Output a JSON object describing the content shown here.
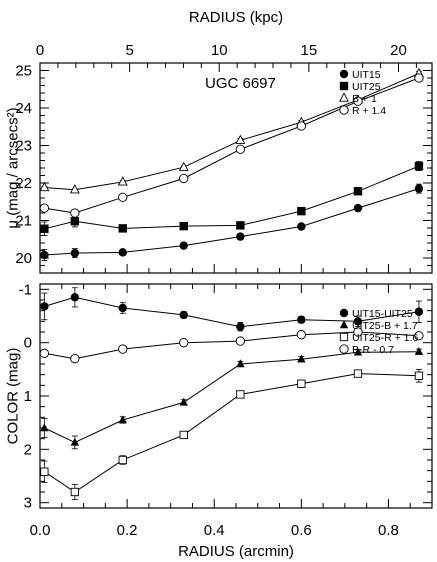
{
  "chart_data": [
    {
      "type": "line",
      "annotation": "UGC 6697",
      "ylabel": "μ (mag / arcsecs²)",
      "xlabel_bottom": "",
      "xlabel_top": "RADIUS (kpc)",
      "xlim": [
        0,
        0.9
      ],
      "ylim": [
        25.2,
        19.6
      ],
      "y_inverted": true,
      "top_axis": {
        "label": "RADIUS (kpc)",
        "ticks": [
          0,
          5,
          10,
          15,
          20
        ],
        "kpc_per_arcmin": 24.3
      },
      "y_ticks": [
        20,
        21,
        22,
        23,
        24,
        25
      ],
      "x_ticks": [
        0.0,
        0.2,
        0.4,
        0.6,
        0.8
      ],
      "x": [
        0.01,
        0.08,
        0.19,
        0.33,
        0.46,
        0.6,
        0.73,
        0.87
      ],
      "series": [
        {
          "name": "UIT15",
          "marker": "filled-circle",
          "values": [
            20.08,
            20.13,
            20.15,
            20.33,
            20.57,
            20.84,
            21.33,
            21.85
          ],
          "errors": [
            0.15,
            0.12,
            0.06,
            0.06,
            0.06,
            0.06,
            0.06,
            0.12
          ]
        },
        {
          "name": "UIT25",
          "marker": "filled-square",
          "values": [
            20.78,
            20.98,
            20.79,
            20.85,
            20.87,
            21.25,
            21.78,
            22.45
          ],
          "errors": [
            0.18,
            0.15,
            0.06,
            0.06,
            0.06,
            0.06,
            0.06,
            0.12
          ]
        },
        {
          "name": "B + 1",
          "marker": "open-triangle",
          "values": [
            21.88,
            21.82,
            22.03,
            22.42,
            23.14,
            23.62,
            24.22,
            24.92
          ],
          "errors": [
            0.02,
            0.02,
            0.03,
            0.03,
            0.05,
            0.05,
            0.05,
            0.06
          ]
        },
        {
          "name": "R + 1.4",
          "marker": "open-circle",
          "values": [
            21.33,
            21.2,
            21.62,
            22.12,
            22.9,
            23.52,
            24.18,
            24.8
          ],
          "errors": [
            0.02,
            0.02,
            0.03,
            0.03,
            0.05,
            0.05,
            0.05,
            0.06
          ]
        }
      ]
    },
    {
      "type": "line",
      "xlabel": "RADIUS (arcmin)",
      "ylabel": "COLOR (mag)",
      "xlim": [
        0,
        0.9
      ],
      "ylim": [
        -1.1,
        3.1
      ],
      "y_ticks": [
        -1,
        0,
        1,
        2,
        3
      ],
      "x_ticks": [
        0.0,
        0.2,
        0.4,
        0.6,
        0.8
      ],
      "x": [
        0.01,
        0.08,
        0.19,
        0.33,
        0.46,
        0.6,
        0.73,
        0.87
      ],
      "series": [
        {
          "name": "UIT15-UIT25",
          "marker": "filled-circle",
          "values": [
            -0.68,
            -0.85,
            -0.65,
            -0.52,
            -0.3,
            -0.43,
            -0.4,
            -0.58
          ],
          "errors": [
            0.25,
            0.18,
            0.1,
            0.06,
            0.08,
            0.06,
            0.1,
            0.2
          ]
        },
        {
          "name": "UIT25-B + 1.7",
          "marker": "filled-triangle",
          "values": [
            1.6,
            1.87,
            1.45,
            1.12,
            0.4,
            0.31,
            0.18,
            0.17
          ],
          "errors": [
            0.18,
            0.12,
            0.06,
            0.05,
            0.05,
            0.05,
            0.05,
            0.05
          ]
        },
        {
          "name": "UIT25-R + 1.6",
          "marker": "open-square",
          "values": [
            2.42,
            2.8,
            2.2,
            1.73,
            0.97,
            0.77,
            0.58,
            0.62
          ],
          "errors": [
            0.2,
            0.14,
            0.08,
            0.06,
            0.05,
            0.05,
            0.06,
            0.12
          ]
        },
        {
          "name": "B-R - 0.7",
          "marker": "open-circle",
          "values": [
            0.2,
            0.3,
            0.12,
            0.0,
            -0.03,
            -0.15,
            -0.2,
            -0.13
          ],
          "errors": [
            0.02,
            0.02,
            0.02,
            0.02,
            0.02,
            0.03,
            0.03,
            0.04
          ]
        }
      ]
    }
  ]
}
